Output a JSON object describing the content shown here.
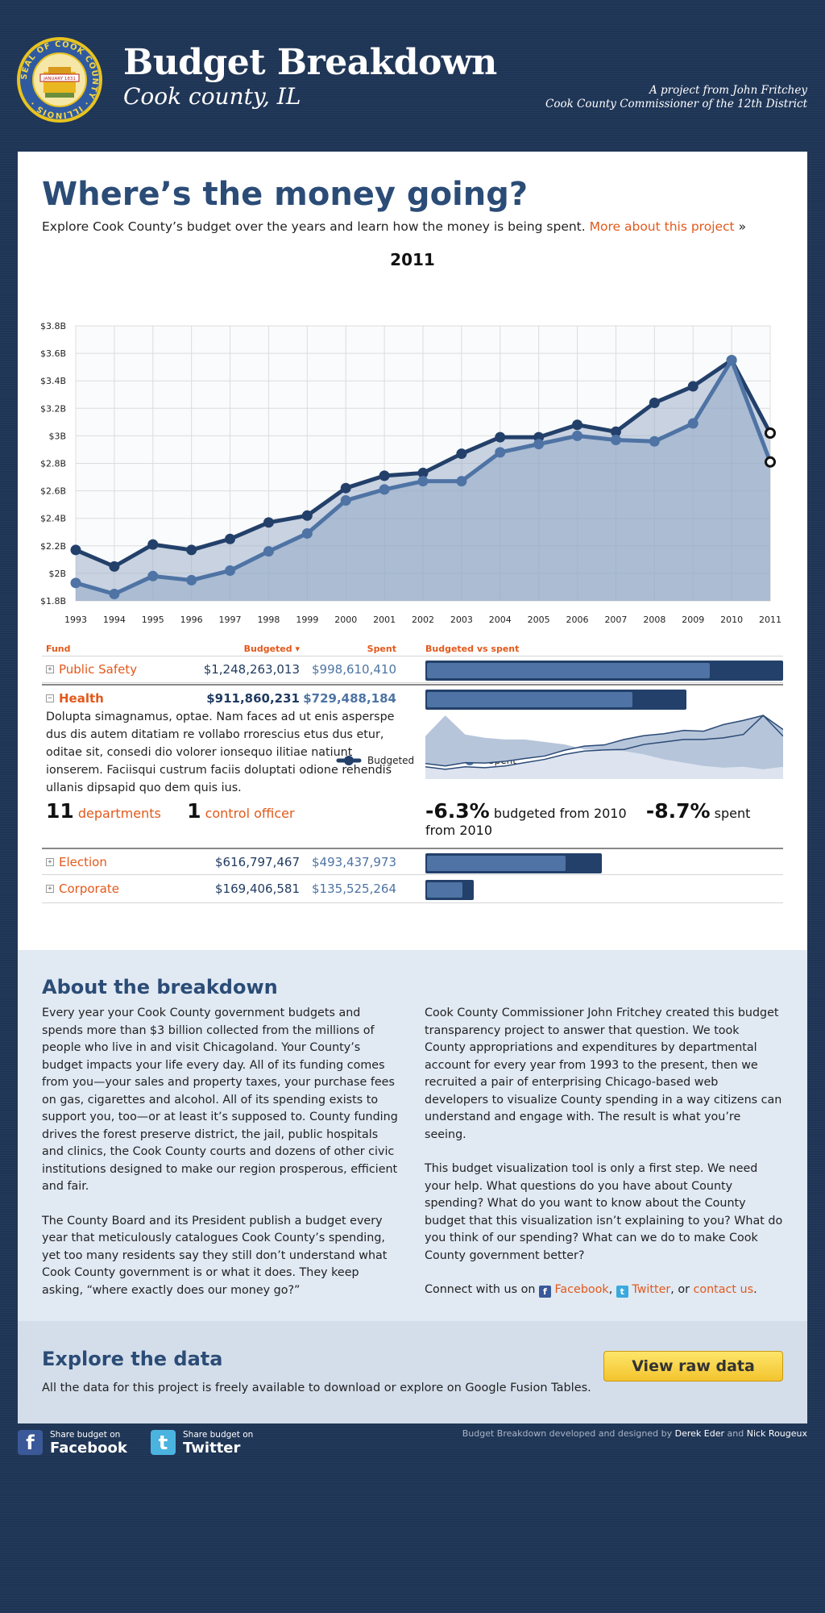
{
  "header": {
    "title": "Budget Breakdown",
    "subtitle": "Cook county, IL",
    "credit_line1": "A project from John Fritchey",
    "credit_line2": "Cook County Commissioner of the 12th District",
    "seal": {
      "ring_text": "SEAL OF COOK COUNTY · ILLINOIS ·",
      "banner_text": "JANUARY 1831"
    }
  },
  "main": {
    "heading": "Where’s the money going?",
    "intro_text": "Explore Cook County’s budget over the years and learn how the money is being spent. ",
    "intro_link": "More about this project",
    "intro_suffix": " »"
  },
  "chart_data": {
    "type": "area",
    "title": "2011",
    "x": [
      1993,
      1994,
      1995,
      1996,
      1997,
      1998,
      1999,
      2000,
      2001,
      2002,
      2003,
      2004,
      2005,
      2006,
      2007,
      2008,
      2009,
      2010,
      2011
    ],
    "y_ticks": [
      "$1.8B",
      "$2B",
      "$2.2B",
      "$2.4B",
      "$2.6B",
      "$2.8B",
      "$3B",
      "$3.2B",
      "$3.4B",
      "$3.6B",
      "$3.8B"
    ],
    "ylim": [
      1.8,
      3.8
    ],
    "yunit": "billions USD",
    "series": [
      {
        "name": "Budgeted",
        "color": "#23406a",
        "values": [
          2.17,
          2.05,
          2.21,
          2.17,
          2.25,
          2.37,
          2.42,
          2.62,
          2.71,
          2.73,
          2.87,
          2.99,
          2.99,
          3.08,
          3.03,
          3.24,
          3.36,
          3.55,
          3.02
        ]
      },
      {
        "name": "Spent",
        "color": "#4e73a4",
        "values": [
          1.93,
          1.85,
          1.98,
          1.95,
          2.02,
          2.16,
          2.29,
          2.53,
          2.61,
          2.67,
          2.67,
          2.88,
          2.94,
          3.0,
          2.97,
          2.96,
          3.09,
          3.55,
          2.81
        ]
      }
    ],
    "grid": true,
    "legend": "bottom-center"
  },
  "table": {
    "headers": {
      "fund": "Fund",
      "budgeted": "Budgeted ▾",
      "spent": "Spent",
      "bvs": "Budgeted vs spent"
    },
    "rows": [
      {
        "name": "Public Safety",
        "budgeted": "$1,248,263,013",
        "spent": "$998,610,410",
        "budgeted_value": 1248263013,
        "spent_value": 998610410,
        "expander": "+"
      },
      {
        "name": "Health",
        "budgeted": "$911,860,231",
        "spent": "$729,488,184",
        "budgeted_value": 911860231,
        "spent_value": 729488184,
        "expander": "−"
      },
      {
        "name": "Election",
        "budgeted": "$616,797,467",
        "spent": "$493,437,973",
        "budgeted_value": 616797467,
        "spent_value": 493437973,
        "expander": "+"
      },
      {
        "name": "Corporate",
        "budgeted": "$169,406,581",
        "spent": "$135,525,264",
        "budgeted_value": 169406581,
        "spent_value": 135525264,
        "expander": "+"
      }
    ],
    "health_detail": {
      "description": "Dolupta simagnamus, optae. Nam faces ad ut enis asperspe dus dis autem ditatiam re vollabo rrorescius etus dus etur, oditae sit, consedi dio volorer ionsequo ilitiae natiunt ionserem. Faciisqui custrum faciis doluptati odione rehendis ullanis dipsapid quo dem quis ius.",
      "departments_count": "11",
      "departments_label": "departments",
      "officers_count": "1",
      "officers_label": "control officer",
      "budget_change": "-6.3%",
      "budget_change_label": "budgeted from 2010",
      "spent_change": "-8.7%",
      "spent_change_label": "spent from 2010",
      "sparkline_budgeted": [
        0.55,
        0.4,
        0.6,
        0.58,
        0.68,
        0.85,
        1.0,
        1.35,
        1.6,
        1.67,
        2.0,
        2.23,
        2.35,
        2.55,
        2.5,
        2.9,
        3.15,
        3.45,
        2.6
      ],
      "sparkline_spent": [
        0.35,
        0.2,
        0.35,
        0.3,
        0.4,
        0.6,
        0.8,
        1.1,
        1.3,
        1.37,
        1.4,
        1.7,
        1.85,
        2.0,
        2.0,
        2.1,
        2.3,
        3.45,
        2.2
      ]
    }
  },
  "about": {
    "heading": "About the breakdown",
    "left_p1": "Every year your Cook County government budgets and spends more than $3 billion collected from the millions of people who live in and visit Chicagoland. Your County’s budget impacts your life every day. All of its funding comes from you—your sales and property taxes, your purchase fees on gas, cigarettes and alcohol. All of its spending exists to support you, too—or at least it’s supposed to. County funding drives the forest preserve district, the jail, public hospitals and clinics, the Cook County courts and dozens of other civic institutions designed to make our region prosperous, efficient and fair.",
    "left_p2": "The County Board and its President publish a budget every year that meticulously catalogues Cook County’s spending, yet too many residents say they still don’t understand what Cook County government is or what it does. They keep asking, “where exactly does our money go?”",
    "right_p1": "Cook County Commissioner John Fritchey created this budget transparency project to answer that question. We took County appropriations and expenditures by departmental account for every year from 1993 to the present, then we recruited a pair of enterprising Chicago-based web developers to visualize County spending in a way citizens can understand and engage with. The result is what you’re seeing.",
    "right_p2": "This budget visualization tool is only a first step. We need your help. What questions do you have about County spending? What do you want to know about the County budget that this visualization isn’t explaining to you? What do you think of our spending? What can we do to make Cook County government better?",
    "connect_prefix": "Connect with us on ",
    "facebook_link": "Facebook",
    "comma": ", ",
    "twitter_link": "Twitter",
    "or": ", or ",
    "contact_link": "contact us",
    "period": "."
  },
  "explore": {
    "heading": "Explore the data",
    "text": "All the data for this project is freely available to download or explore on Google Fusion Tables.",
    "button_label": "View raw data"
  },
  "footer": {
    "facebook_small": "Share budget on",
    "facebook_big": "Facebook",
    "twitter_small": "Share budget on",
    "twitter_big": "Twitter",
    "credit_prefix": "Budget Breakdown developed and designed by ",
    "dev1": "Derek Eder",
    "and": " and ",
    "dev2": "Nick Rougeux"
  },
  "colors": {
    "brand_blue": "#2b4c76",
    "accent_orange": "#e2591b",
    "budgeted": "#23406a",
    "spent": "#4e73a4"
  }
}
